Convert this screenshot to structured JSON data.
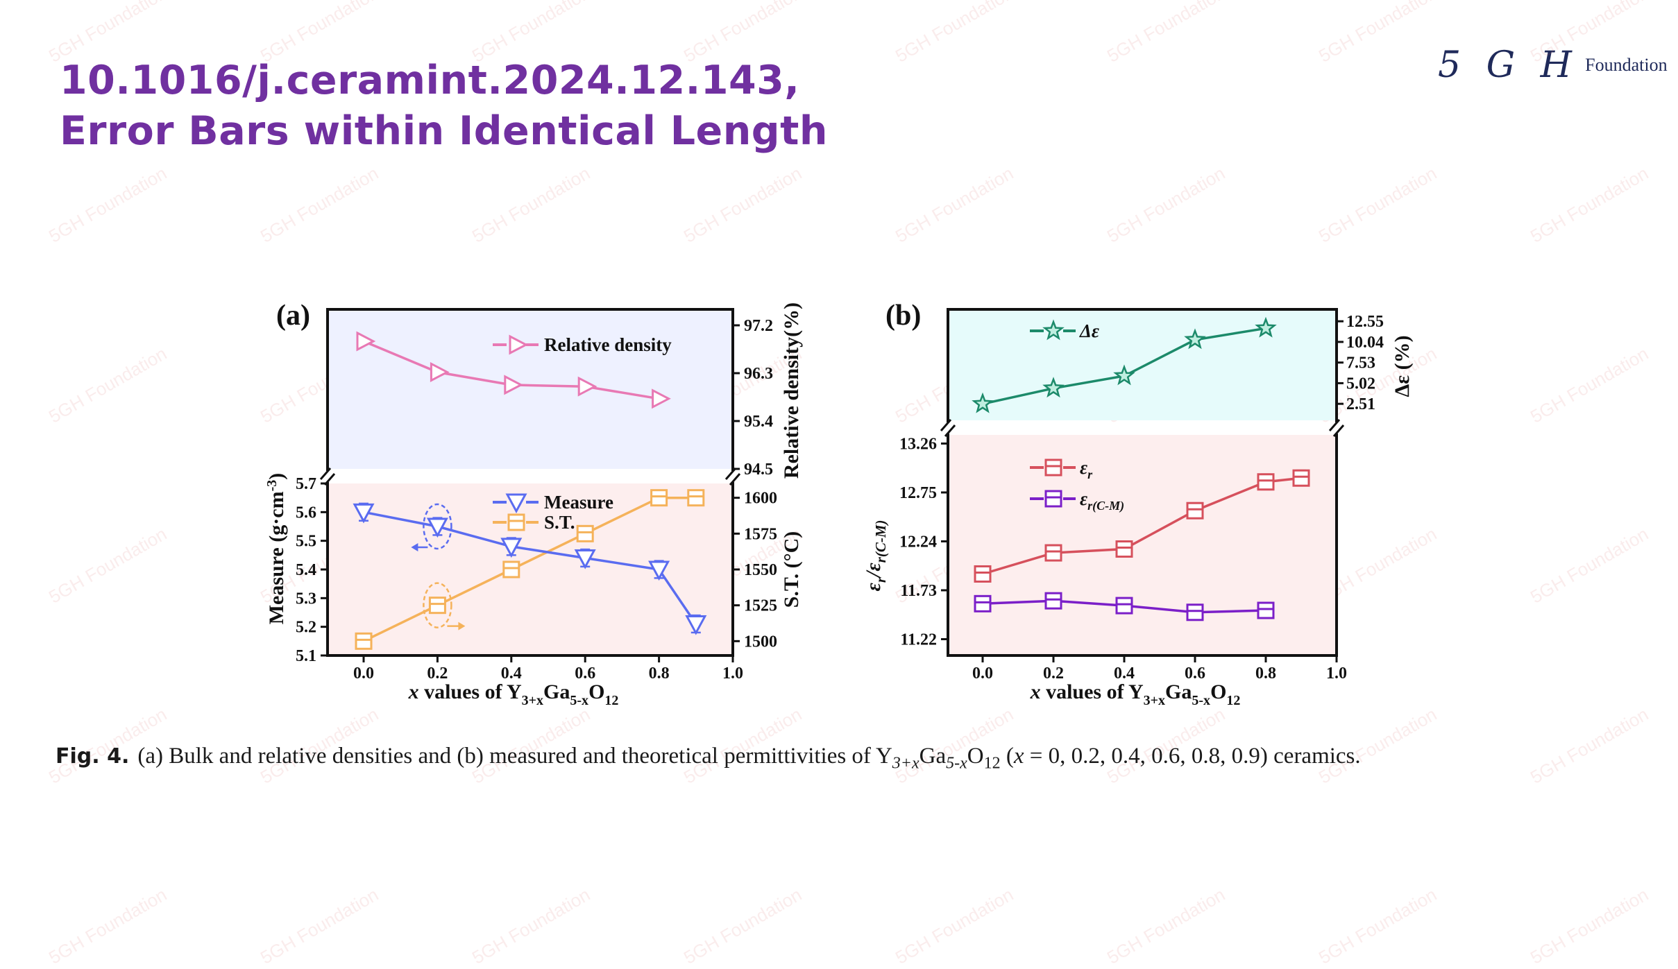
{
  "slide": {
    "title_line1": "10.1016/j.ceramint.2024.12.143,",
    "title_line2": "Error Bars within Identical Length",
    "logo_mark": "5 G H",
    "logo_text": "Foundation",
    "watermark": "5GH Foundation"
  },
  "caption": {
    "label": "Fig. 4.",
    "text": "(a) Bulk and relative densities and (b) measured and theoretical permittivities of Y3+xGa5-xO12 (x = 0, 0.2, 0.4, 0.6, 0.8, 0.9) ceramics."
  },
  "colors": {
    "title": "#7030a0",
    "relative_density": "#e879b4",
    "measure": "#5a6cf0",
    "sintering_temperature": "#f5b25a",
    "delta_eps": "#1c8a6a",
    "eps_r": "#d6505c",
    "eps_r_cm": "#7b1fc8",
    "panel_a_top_bg": "#eef1ff",
    "panel_a_bottom_bg": "#fdeeee",
    "panel_b_top_bg": "#e6fbfb",
    "panel_b_bottom_bg": "#fdeeee"
  },
  "chart_data": [
    {
      "panel": "(a)",
      "type": "line",
      "broken_axis": true,
      "xlabel": "x values of Y3+xGa5-xO12",
      "xticks": [
        "0.0",
        "0.2",
        "0.4",
        "0.6",
        "0.8",
        "1.0"
      ],
      "xlim": [
        0.0,
        1.0
      ],
      "top": {
        "y2label": "Relative density(%)",
        "y2ticks": [
          "97.2",
          "96.3",
          "95.4",
          "94.5"
        ],
        "ylim": [
          94.5,
          97.5
        ],
        "series": [
          {
            "name": "Relative density",
            "marker": "triangle-right",
            "x": [
              0.0,
              0.2,
              0.4,
              0.6,
              0.8
            ],
            "values": [
              96.9,
              96.32,
              96.08,
              96.05,
              95.82
            ]
          }
        ]
      },
      "bottom": {
        "ylabel": "Measure (g·cm-3)",
        "yticks": [
          "5.7",
          "5.6",
          "5.5",
          "5.4",
          "5.3",
          "5.2",
          "5.1"
        ],
        "ylim": [
          5.1,
          5.7
        ],
        "y2label": "S.T. (°C)",
        "y2ticks": [
          "1600",
          "1575",
          "1550",
          "1525",
          "1500"
        ],
        "y2lim": [
          1490,
          1610
        ],
        "series": [
          {
            "name": "Measure",
            "marker": "triangle-down",
            "axis": "left",
            "x": [
              0.0,
              0.2,
              0.4,
              0.6,
              0.8,
              0.9
            ],
            "values": [
              5.6,
              5.55,
              5.48,
              5.44,
              5.4,
              5.21
            ],
            "error": [
              0.03,
              0.03,
              0.03,
              0.03,
              0.03,
              0.03
            ]
          },
          {
            "name": "S.T.",
            "marker": "square",
            "axis": "right",
            "x": [
              0.0,
              0.2,
              0.4,
              0.6,
              0.8,
              0.9
            ],
            "values": [
              1500,
              1525,
              1550,
              1575,
              1600,
              1600
            ]
          }
        ]
      }
    },
    {
      "panel": "(b)",
      "type": "line",
      "broken_axis": true,
      "xlabel": "x values of Y3+xGa5-xO12",
      "xticks": [
        "0.0",
        "0.2",
        "0.4",
        "0.6",
        "0.8",
        "1.0"
      ],
      "xlim": [
        0.0,
        1.0
      ],
      "top": {
        "y2label": "Δε (%)",
        "y2ticks": [
          "12.55",
          "10.04",
          "7.53",
          "5.02",
          "2.51"
        ],
        "ylim": [
          0.5,
          14.0
        ],
        "series": [
          {
            "name": "Δε",
            "marker": "star",
            "x": [
              0.0,
              0.2,
              0.4,
              0.6,
              0.8
            ],
            "values": [
              2.5,
              4.4,
              5.9,
              10.3,
              11.7
            ]
          }
        ]
      },
      "bottom": {
        "ylabel": "εr/εr(C-M)",
        "yticks": [
          "13.26",
          "12.75",
          "12.24",
          "11.73",
          "11.22"
        ],
        "ylim": [
          11.05,
          13.35
        ],
        "series": [
          {
            "name": "εr",
            "marker": "square",
            "x": [
              0.0,
              0.2,
              0.4,
              0.6,
              0.8,
              0.9
            ],
            "values": [
              11.9,
              12.12,
              12.16,
              12.56,
              12.86,
              12.9
            ],
            "error": [
              0.08,
              0.08,
              0.08,
              0.08,
              0.08,
              0.08
            ]
          },
          {
            "name": "εr(C-M)",
            "marker": "square",
            "x": [
              0.0,
              0.2,
              0.4,
              0.6,
              0.8
            ],
            "values": [
              11.59,
              11.62,
              11.57,
              11.5,
              11.52
            ]
          }
        ]
      }
    }
  ]
}
